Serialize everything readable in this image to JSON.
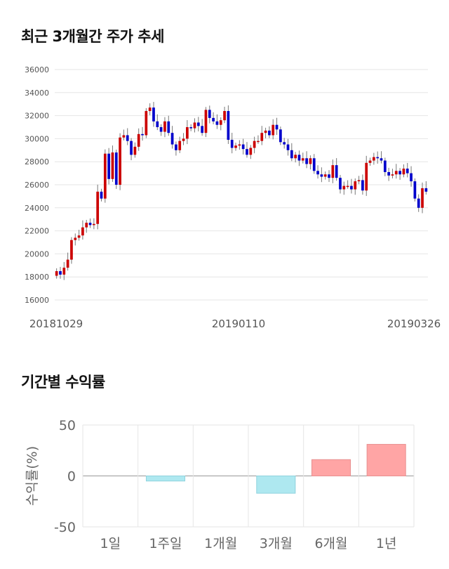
{
  "price_section": {
    "title": "최근 3개월간 주가 추세"
  },
  "returns_section": {
    "title": "기간별 수익률"
  },
  "colors": {
    "up": "#cc0000",
    "down": "#0000cc",
    "wick": "#777777",
    "positive_bar": "#ffa5a5",
    "negative_bar": "#aee8f0",
    "grid": "#e6e6e6"
  },
  "chart_data": [
    {
      "type": "candlestick",
      "title": "",
      "ylim": [
        16000,
        36000
      ],
      "yticks": [
        "36000",
        "34000",
        "32000",
        "30000",
        "28000",
        "26000",
        "24000",
        "22000",
        "20000",
        "18000",
        "16000"
      ],
      "xtick_labels": [
        "20181029",
        "20190110",
        "20190326"
      ],
      "grid": true,
      "close_series": [
        18500,
        18200,
        18800,
        19500,
        21200,
        21400,
        21600,
        22300,
        22700,
        22500,
        22600,
        25400,
        24800,
        28700,
        26500,
        28800,
        26000,
        30100,
        30300,
        29800,
        28600,
        29300,
        30400,
        30300,
        32400,
        32700,
        31500,
        31000,
        30600,
        31500,
        30500,
        29500,
        29000,
        29800,
        30000,
        31000,
        30900,
        31400,
        31100,
        30500,
        32500,
        31800,
        31500,
        31200,
        31600,
        32400,
        29900,
        29200,
        29400,
        29500,
        29100,
        28600,
        29200,
        29800,
        29800,
        30500,
        30700,
        30300,
        31200,
        30800,
        29700,
        29500,
        29000,
        28300,
        28600,
        28100,
        28300,
        27800,
        28300,
        27200,
        26900,
        26700,
        26900,
        26600,
        27700,
        26600,
        25600,
        25900,
        25900,
        25600,
        26300,
        26400,
        25500,
        27900,
        28100,
        28400,
        28300,
        28100,
        27100,
        26800,
        26900,
        27200,
        26900,
        27400,
        27000,
        26300,
        24800,
        24000,
        25700,
        25400
      ]
    },
    {
      "type": "bar",
      "title": "",
      "xlabel": "",
      "ylabel": "수익률(%)",
      "ylim": [
        -50,
        50
      ],
      "yticks": [
        "50",
        "0",
        "-50"
      ],
      "categories": [
        "1일",
        "1주일",
        "1개월",
        "3개월",
        "6개월",
        "1년"
      ],
      "values": [
        0,
        -5,
        0,
        -17,
        16,
        31
      ],
      "grid": true
    }
  ]
}
